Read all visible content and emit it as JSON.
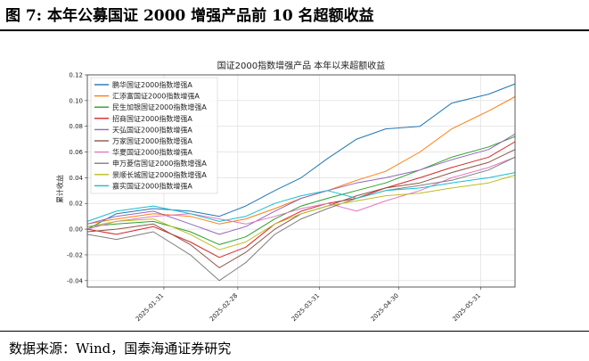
{
  "figure": {
    "number": "图 7:",
    "caption": "本年公募国证 2000 增强产品前 10 名超额收益",
    "source": "数据来源：Wind，国泰海通证券研究"
  },
  "chart_data": {
    "type": "line",
    "title": "国证2000指数增强产品 本年以来超额收益",
    "xlabel": "",
    "ylabel": "累计收益",
    "ylim": [
      -0.045,
      0.12
    ],
    "yticks": [
      -0.04,
      -0.02,
      0.0,
      0.02,
      0.04,
      0.06,
      0.08,
      0.1,
      0.12
    ],
    "ytick_labels": [
      "-0.04",
      "-0.02",
      "0.00",
      "0.02",
      "0.04",
      "0.06",
      "0.08",
      "0.10",
      "0.12"
    ],
    "xticks": [
      "2025-01-31",
      "2025-02-28",
      "2025-03-31",
      "2025-04-30",
      "2025-05-31"
    ],
    "xrange": [
      "2025-01-02",
      "2025-06-13"
    ],
    "grid": true,
    "legend_position": "upper-left",
    "series": [
      {
        "name": "鹏华国证2000指数增强A",
        "color": "#1f77b4",
        "points": [
          [
            "2025-01-02",
            0.0
          ],
          [
            "2025-01-13",
            0.012
          ],
          [
            "2025-01-27",
            0.016
          ],
          [
            "2025-02-10",
            0.014
          ],
          [
            "2025-02-21",
            0.01
          ],
          [
            "2025-03-03",
            0.018
          ],
          [
            "2025-03-14",
            0.03
          ],
          [
            "2025-03-24",
            0.04
          ],
          [
            "2025-04-03",
            0.055
          ],
          [
            "2025-04-14",
            0.07
          ],
          [
            "2025-04-25",
            0.078
          ],
          [
            "2025-05-08",
            0.08
          ],
          [
            "2025-05-20",
            0.098
          ],
          [
            "2025-06-03",
            0.105
          ],
          [
            "2025-06-13",
            0.113
          ]
        ]
      },
      {
        "name": "汇添富国证2000指数增强A",
        "color": "#ff7f0e",
        "points": [
          [
            "2025-01-02",
            0.004
          ],
          [
            "2025-01-13",
            0.008
          ],
          [
            "2025-01-27",
            0.012
          ],
          [
            "2025-02-10",
            0.01
          ],
          [
            "2025-02-21",
            0.004
          ],
          [
            "2025-03-03",
            0.008
          ],
          [
            "2025-03-14",
            0.016
          ],
          [
            "2025-03-24",
            0.024
          ],
          [
            "2025-04-03",
            0.03
          ],
          [
            "2025-04-14",
            0.038
          ],
          [
            "2025-04-25",
            0.045
          ],
          [
            "2025-05-08",
            0.06
          ],
          [
            "2025-05-20",
            0.078
          ],
          [
            "2025-06-03",
            0.092
          ],
          [
            "2025-06-13",
            0.103
          ]
        ]
      },
      {
        "name": "民生加银国证2000指数增强A",
        "color": "#2ca02c",
        "points": [
          [
            "2025-01-02",
            0.002
          ],
          [
            "2025-01-13",
            0.004
          ],
          [
            "2025-01-27",
            0.006
          ],
          [
            "2025-02-10",
            -0.002
          ],
          [
            "2025-02-21",
            -0.012
          ],
          [
            "2025-03-03",
            -0.006
          ],
          [
            "2025-03-14",
            0.008
          ],
          [
            "2025-03-24",
            0.018
          ],
          [
            "2025-04-03",
            0.024
          ],
          [
            "2025-04-14",
            0.03
          ],
          [
            "2025-04-25",
            0.036
          ],
          [
            "2025-05-08",
            0.046
          ],
          [
            "2025-05-20",
            0.056
          ],
          [
            "2025-06-03",
            0.064
          ],
          [
            "2025-06-13",
            0.072
          ]
        ]
      },
      {
        "name": "招商国证2000指数增强A",
        "color": "#d62728",
        "points": [
          [
            "2025-01-02",
            0.0
          ],
          [
            "2025-01-13",
            -0.004
          ],
          [
            "2025-01-27",
            0.002
          ],
          [
            "2025-02-10",
            -0.01
          ],
          [
            "2025-02-21",
            -0.022
          ],
          [
            "2025-03-03",
            -0.014
          ],
          [
            "2025-03-14",
            0.004
          ],
          [
            "2025-03-24",
            0.014
          ],
          [
            "2025-04-03",
            0.02
          ],
          [
            "2025-04-14",
            0.024
          ],
          [
            "2025-04-25",
            0.032
          ],
          [
            "2025-05-08",
            0.04
          ],
          [
            "2025-05-20",
            0.048
          ],
          [
            "2025-06-03",
            0.056
          ],
          [
            "2025-06-13",
            0.068
          ]
        ]
      },
      {
        "name": "天弘国证2000指数增强A",
        "color": "#9467bd",
        "points": [
          [
            "2025-01-02",
            0.004
          ],
          [
            "2025-01-13",
            0.01
          ],
          [
            "2025-01-27",
            0.014
          ],
          [
            "2025-02-10",
            0.004
          ],
          [
            "2025-02-21",
            -0.004
          ],
          [
            "2025-03-03",
            0.002
          ],
          [
            "2025-03-14",
            0.014
          ],
          [
            "2025-03-24",
            0.024
          ],
          [
            "2025-04-03",
            0.03
          ],
          [
            "2025-04-14",
            0.036
          ],
          [
            "2025-04-25",
            0.04
          ],
          [
            "2025-05-08",
            0.046
          ],
          [
            "2025-05-20",
            0.054
          ],
          [
            "2025-06-03",
            0.062
          ],
          [
            "2025-06-13",
            0.074
          ]
        ]
      },
      {
        "name": "万家国证2000指数增强A",
        "color": "#8c564b",
        "points": [
          [
            "2025-01-02",
            -0.002
          ],
          [
            "2025-01-13",
            0.0
          ],
          [
            "2025-01-27",
            0.004
          ],
          [
            "2025-02-10",
            -0.012
          ],
          [
            "2025-02-21",
            -0.03
          ],
          [
            "2025-03-03",
            -0.018
          ],
          [
            "2025-03-14",
            0.0
          ],
          [
            "2025-03-24",
            0.012
          ],
          [
            "2025-04-03",
            0.018
          ],
          [
            "2025-04-14",
            0.026
          ],
          [
            "2025-04-25",
            0.032
          ],
          [
            "2025-05-08",
            0.036
          ],
          [
            "2025-05-20",
            0.044
          ],
          [
            "2025-06-03",
            0.052
          ],
          [
            "2025-06-13",
            0.062
          ]
        ]
      },
      {
        "name": "华夏国证2000指数增强A",
        "color": "#e377c2",
        "points": [
          [
            "2025-01-02",
            0.0
          ],
          [
            "2025-01-13",
            0.006
          ],
          [
            "2025-01-27",
            0.01
          ],
          [
            "2025-02-10",
            0.012
          ],
          [
            "2025-02-21",
            0.008
          ],
          [
            "2025-03-03",
            0.004
          ],
          [
            "2025-03-14",
            0.01
          ],
          [
            "2025-03-24",
            0.016
          ],
          [
            "2025-04-03",
            0.02
          ],
          [
            "2025-04-14",
            0.014
          ],
          [
            "2025-04-25",
            0.022
          ],
          [
            "2025-05-08",
            0.03
          ],
          [
            "2025-05-20",
            0.04
          ],
          [
            "2025-06-03",
            0.048
          ],
          [
            "2025-06-13",
            0.056
          ]
        ]
      },
      {
        "name": "申万菱信国证2000指数增强A",
        "color": "#7f7f7f",
        "points": [
          [
            "2025-01-02",
            -0.004
          ],
          [
            "2025-01-13",
            -0.008
          ],
          [
            "2025-01-27",
            -0.002
          ],
          [
            "2025-02-10",
            -0.02
          ],
          [
            "2025-02-21",
            -0.04
          ],
          [
            "2025-03-03",
            -0.026
          ],
          [
            "2025-03-14",
            -0.004
          ],
          [
            "2025-03-24",
            0.008
          ],
          [
            "2025-04-03",
            0.016
          ],
          [
            "2025-04-14",
            0.024
          ],
          [
            "2025-04-25",
            0.03
          ],
          [
            "2025-05-08",
            0.034
          ],
          [
            "2025-05-20",
            0.038
          ],
          [
            "2025-06-03",
            0.046
          ],
          [
            "2025-06-13",
            0.056
          ]
        ]
      },
      {
        "name": "景顺长城国证2000指数增强A",
        "color": "#bcbd22",
        "points": [
          [
            "2025-01-02",
            0.002
          ],
          [
            "2025-01-13",
            0.006
          ],
          [
            "2025-01-27",
            0.008
          ],
          [
            "2025-02-10",
            -0.004
          ],
          [
            "2025-02-21",
            -0.016
          ],
          [
            "2025-03-03",
            -0.01
          ],
          [
            "2025-03-14",
            0.004
          ],
          [
            "2025-03-24",
            0.012
          ],
          [
            "2025-04-03",
            0.018
          ],
          [
            "2025-04-14",
            0.022
          ],
          [
            "2025-04-25",
            0.026
          ],
          [
            "2025-05-08",
            0.028
          ],
          [
            "2025-05-20",
            0.032
          ],
          [
            "2025-06-03",
            0.036
          ],
          [
            "2025-06-13",
            0.042
          ]
        ]
      },
      {
        "name": "嘉实国证2000指数增强A",
        "color": "#17becf",
        "points": [
          [
            "2025-01-02",
            0.006
          ],
          [
            "2025-01-13",
            0.014
          ],
          [
            "2025-01-27",
            0.018
          ],
          [
            "2025-02-10",
            0.012
          ],
          [
            "2025-02-21",
            0.006
          ],
          [
            "2025-03-03",
            0.01
          ],
          [
            "2025-03-14",
            0.02
          ],
          [
            "2025-03-24",
            0.026
          ],
          [
            "2025-04-03",
            0.03
          ],
          [
            "2025-04-14",
            0.024
          ],
          [
            "2025-04-25",
            0.03
          ],
          [
            "2025-05-08",
            0.032
          ],
          [
            "2025-05-20",
            0.036
          ],
          [
            "2025-06-03",
            0.04
          ],
          [
            "2025-06-13",
            0.044
          ]
        ]
      }
    ]
  }
}
